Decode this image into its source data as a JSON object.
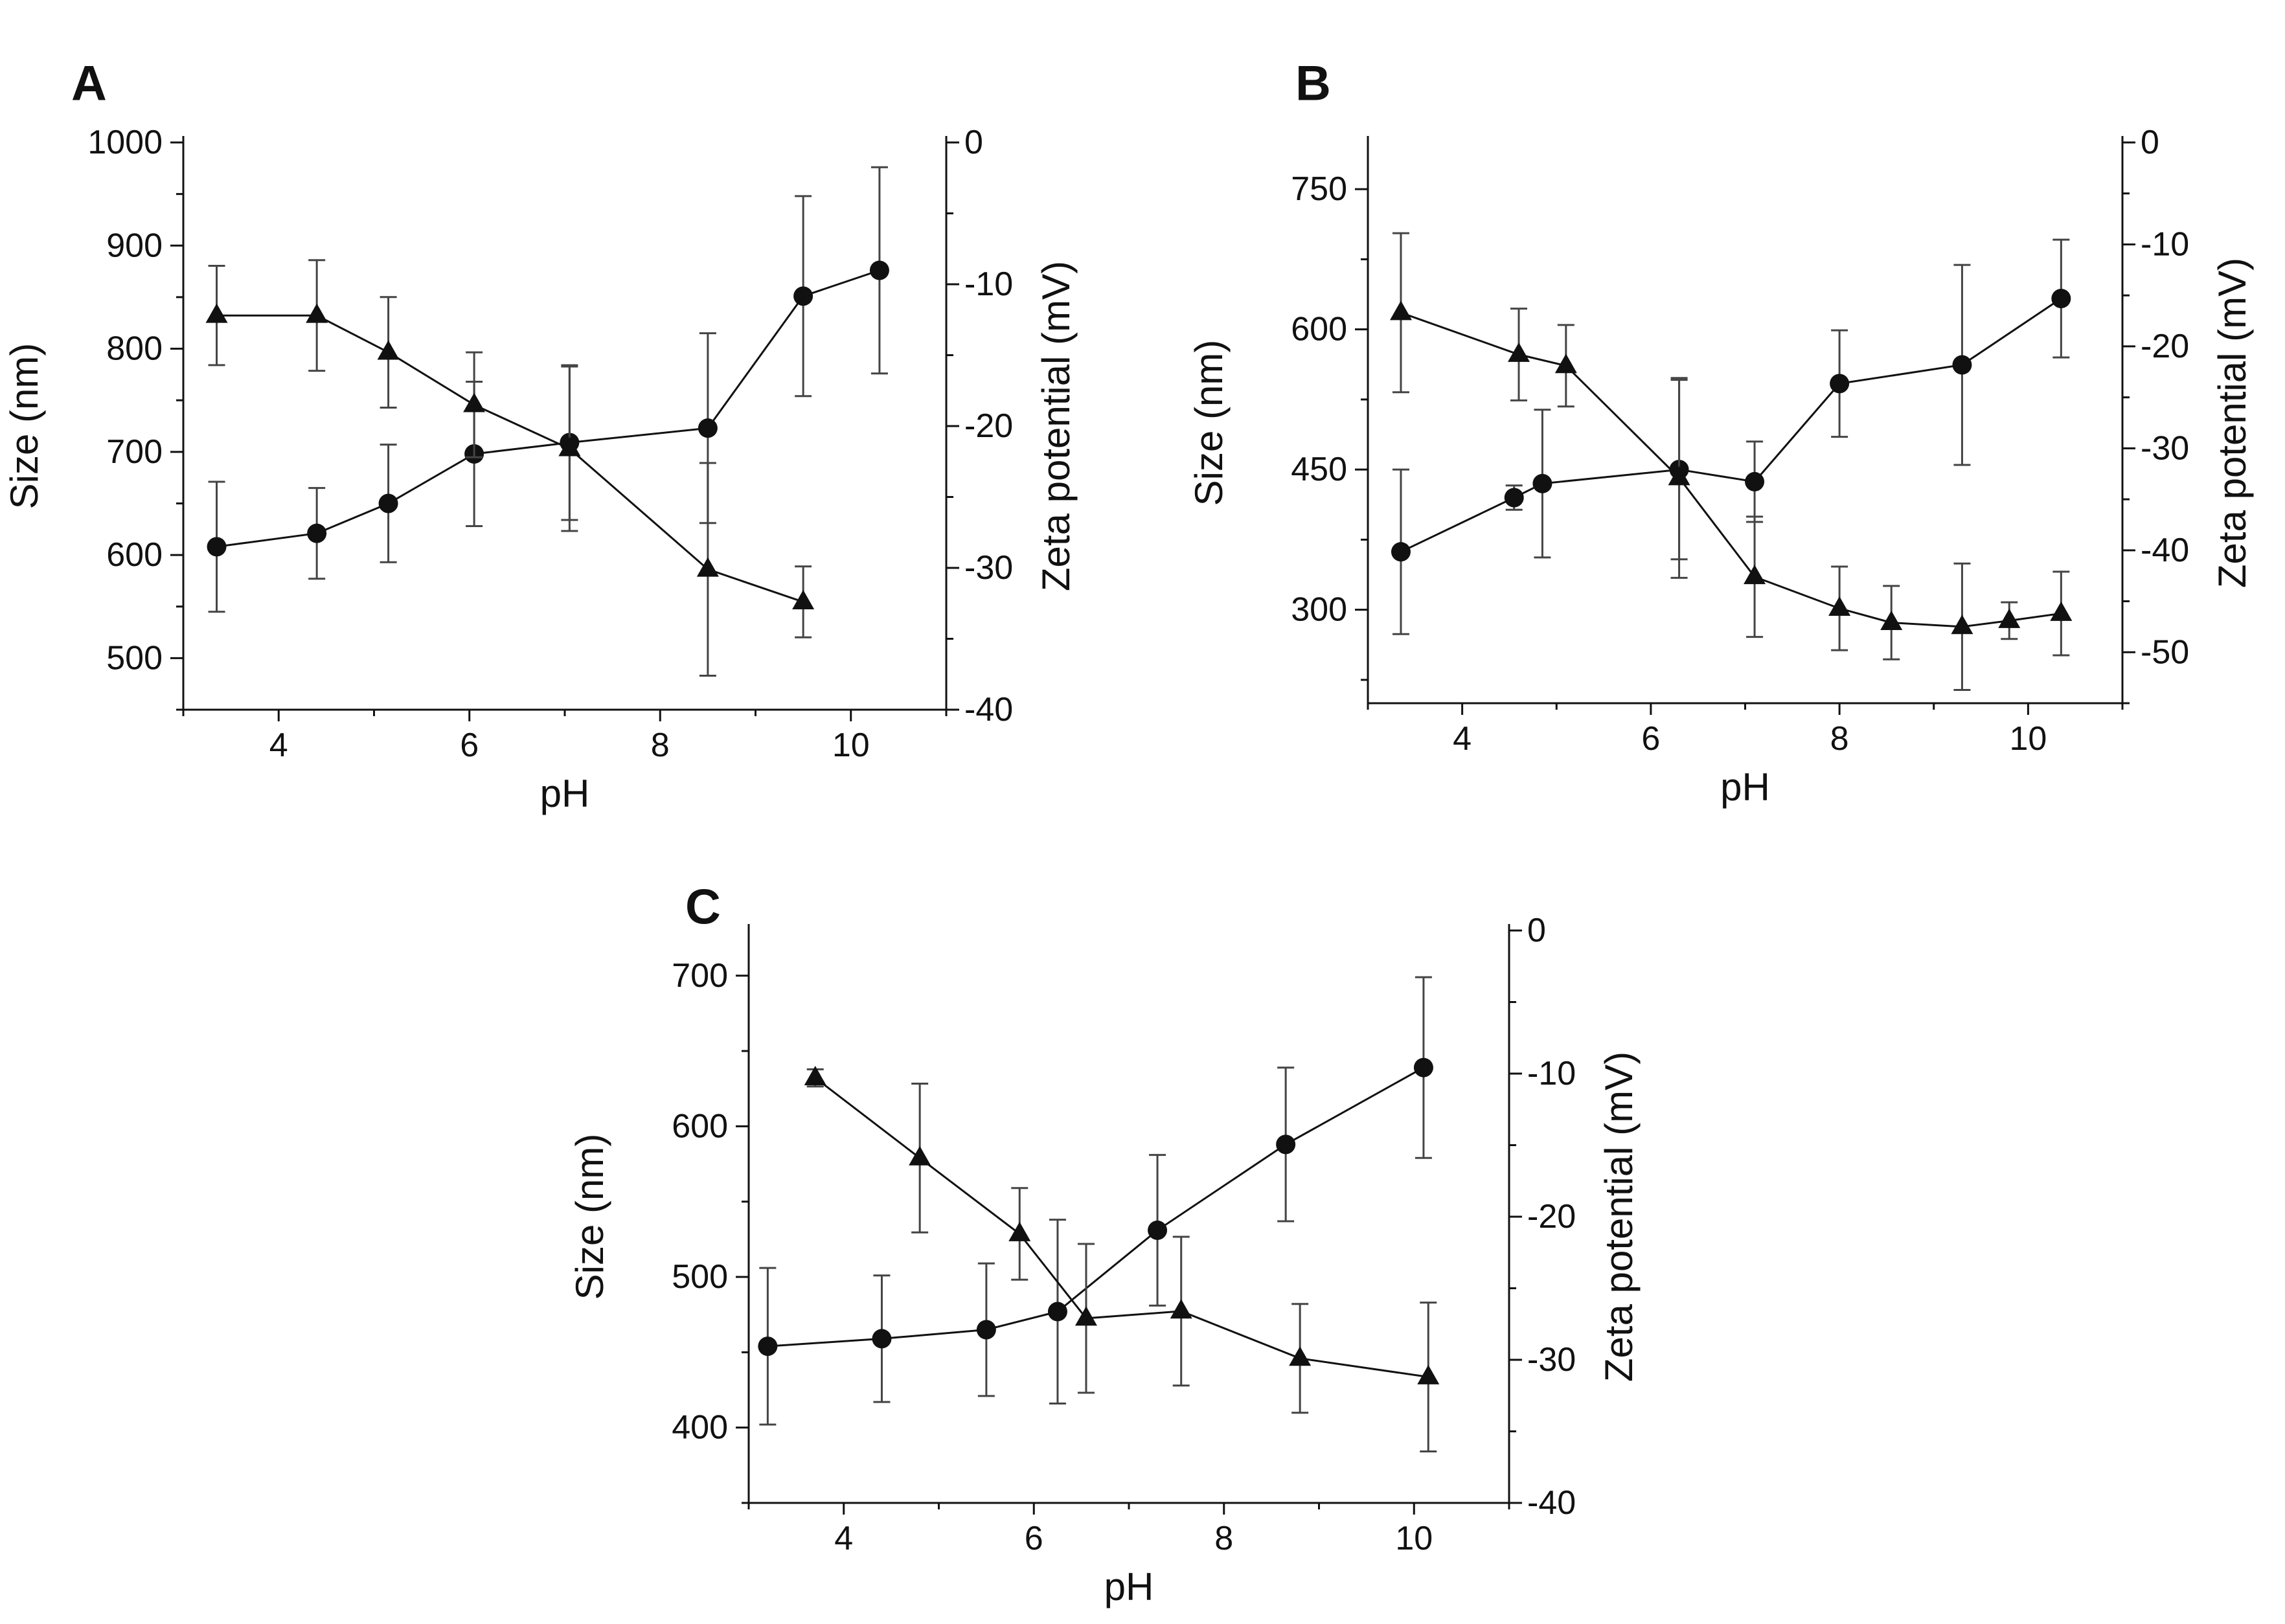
{
  "figure": {
    "background": "#ffffff",
    "ink": "#111111",
    "errorbar_color": "#444444"
  },
  "chart_data": [
    {
      "type": "line",
      "panel": "A",
      "xlabel": "pH",
      "ylabel": "Size (nm)",
      "y2label": "Zeta potential (mV)",
      "xlim": [
        3.0,
        11.0
      ],
      "ylim": [
        450,
        1000
      ],
      "y2lim": [
        -40,
        0
      ],
      "xticks": [
        4,
        6,
        8,
        10
      ],
      "yticks": [
        500,
        600,
        700,
        800,
        900,
        1000
      ],
      "y2ticks": [
        -40,
        -30,
        -20,
        -10,
        0
      ],
      "xtick_labels": [
        "4",
        "6",
        "8",
        "10"
      ],
      "ytick_labels": [
        "500",
        "600",
        "700",
        "800",
        "900",
        "1000"
      ],
      "y2tick_labels": [
        "-40",
        "-30",
        "-20",
        "-10",
        "0"
      ],
      "series": [
        {
          "name": "Size",
          "marker": "circle",
          "axis": "left",
          "x": [
            3.35,
            4.4,
            5.15,
            6.05,
            7.05,
            8.5,
            9.5,
            10.3
          ],
          "y": [
            608,
            621,
            650,
            698,
            709,
            723,
            851,
            876
          ],
          "err": [
            63,
            44,
            57,
            70,
            75,
            92,
            97,
            100
          ]
        },
        {
          "name": "Zeta potential",
          "marker": "triangle",
          "axis": "right",
          "x": [
            3.35,
            4.4,
            5.15,
            6.05,
            7.05,
            8.5,
            9.5
          ],
          "y": [
            -12.2,
            -12.2,
            -14.8,
            -18.5,
            -21.6,
            -30.1,
            -32.4
          ],
          "err": [
            3.5,
            3.9,
            3.9,
            3.7,
            5.8,
            7.5,
            2.5
          ]
        }
      ]
    },
    {
      "type": "line",
      "panel": "B",
      "xlabel": "pH",
      "ylabel": "Size (nm)",
      "y2label": "Zeta potential (mV)",
      "xlim": [
        3.0,
        11.0
      ],
      "ylim": [
        200,
        800
      ],
      "y2lim": [
        -55,
        0
      ],
      "xticks": [
        4,
        6,
        8,
        10
      ],
      "yticks": [
        300,
        450,
        600,
        750
      ],
      "y2ticks": [
        -50,
        -40,
        -30,
        -20,
        -10,
        0
      ],
      "xtick_labels": [
        "4",
        "6",
        "8",
        "10"
      ],
      "ytick_labels": [
        "300",
        "450",
        "600",
        "750"
      ],
      "y2tick_labels": [
        "-50",
        "-40",
        "-30",
        "-20",
        "-10",
        "0"
      ],
      "series": [
        {
          "name": "Size",
          "marker": "circle",
          "axis": "left",
          "x": [
            3.35,
            4.55,
            4.85,
            6.3,
            7.1,
            8.0,
            9.3,
            10.35
          ],
          "y": [
            362,
            420,
            435,
            450,
            437,
            542,
            562,
            633
          ],
          "err": [
            88,
            13,
            79,
            96,
            43,
            57,
            107,
            63
          ]
        },
        {
          "name": "Zeta potential",
          "marker": "triangle",
          "axis": "right",
          "x": [
            3.35,
            4.6,
            5.1,
            6.3,
            7.1,
            8.0,
            8.55,
            9.3,
            9.8,
            10.35
          ],
          "y": [
            -16.7,
            -20.8,
            -21.9,
            -32.9,
            -42.6,
            -45.7,
            -47.1,
            -47.5,
            -46.9,
            -46.2
          ],
          "err": [
            7.8,
            4.5,
            4.0,
            9.8,
            5.9,
            4.1,
            3.6,
            6.2,
            1.8,
            4.1
          ]
        }
      ]
    },
    {
      "type": "line",
      "panel": "C",
      "xlabel": "pH",
      "ylabel": "Size (nm)",
      "y2label": "Zeta potential (mV)",
      "xlim": [
        3.0,
        11.0
      ],
      "ylim": [
        350,
        730
      ],
      "y2lim": [
        -40,
        0
      ],
      "xticks": [
        4,
        6,
        8,
        10
      ],
      "yticks": [
        400,
        500,
        600,
        700
      ],
      "y2ticks": [
        -40,
        -30,
        -20,
        -10,
        0
      ],
      "xtick_labels": [
        "4",
        "6",
        "8",
        "10"
      ],
      "ytick_labels": [
        "400",
        "500",
        "600",
        "700"
      ],
      "y2tick_labels": [
        "-40",
        "-30",
        "-20",
        "-10",
        "0"
      ],
      "series": [
        {
          "name": "Size",
          "marker": "circle",
          "axis": "left",
          "x": [
            3.2,
            4.4,
            5.5,
            6.25,
            7.3,
            8.65,
            10.1
          ],
          "y": [
            454,
            459,
            465,
            477,
            531,
            588,
            639
          ],
          "err": [
            52,
            42,
            44,
            61,
            50,
            51,
            60
          ]
        },
        {
          "name": "Zeta potential",
          "marker": "triangle",
          "axis": "right",
          "x": [
            3.7,
            4.8,
            5.85,
            6.55,
            7.55,
            8.8,
            10.15
          ],
          "y": [
            -10.3,
            -15.9,
            -21.2,
            -27.1,
            -26.6,
            -29.9,
            -31.2
          ],
          "err": [
            0.6,
            5.2,
            3.2,
            5.2,
            5.2,
            3.8,
            5.2
          ]
        }
      ]
    }
  ]
}
